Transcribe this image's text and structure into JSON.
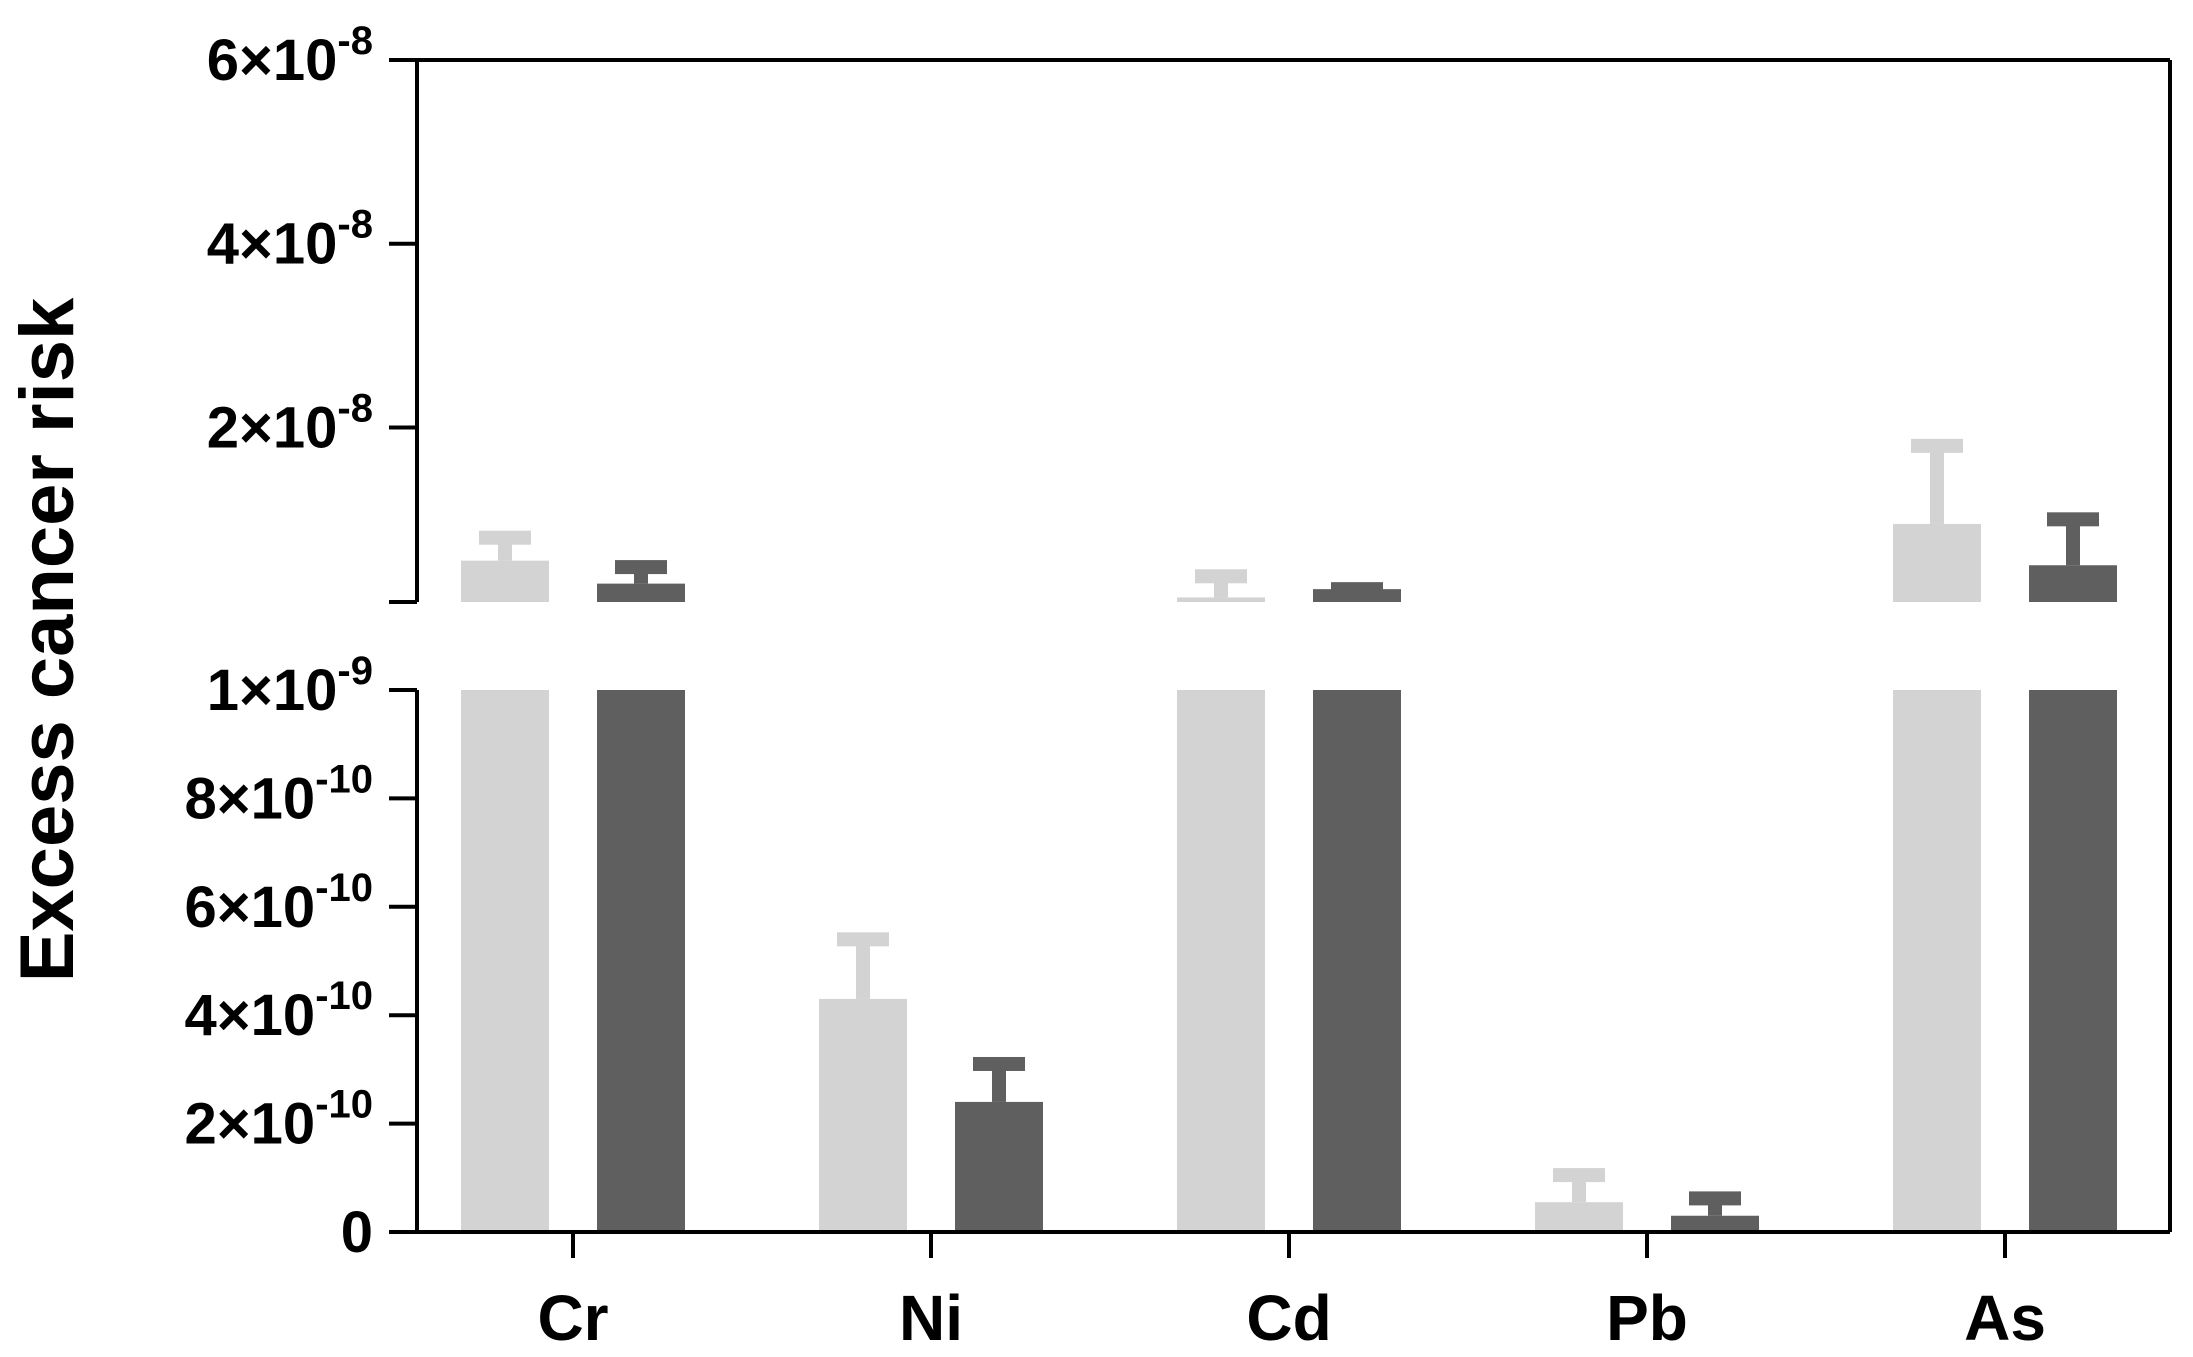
{
  "chart_data": {
    "type": "bar",
    "title": "",
    "xlabel": "",
    "ylabel": "Excess cancer risk",
    "categories": [
      "Cr",
      "Ni",
      "Cd",
      "Pb",
      "As"
    ],
    "y_axis": {
      "broken": true,
      "lower_segment": {
        "ylim": [
          0,
          1e-09
        ],
        "scale": "linear"
      },
      "upper_segment": {
        "ylim": [
          1e-09,
          6e-08
        ],
        "scale": "linear"
      }
    },
    "y_tick_labels": [
      {
        "value": 0,
        "mantissa": "0",
        "exponent": ""
      },
      {
        "value": 2e-10,
        "mantissa": "2×10",
        "exponent": "-10"
      },
      {
        "value": 4e-10,
        "mantissa": "4×10",
        "exponent": "-10"
      },
      {
        "value": 6e-10,
        "mantissa": "6×10",
        "exponent": "-10"
      },
      {
        "value": 8e-10,
        "mantissa": "8×10",
        "exponent": "-10"
      },
      {
        "value": 1e-09,
        "mantissa": "1×10",
        "exponent": "-9"
      },
      {
        "value": 2e-08,
        "mantissa": "2×10",
        "exponent": "-8"
      },
      {
        "value": 4e-08,
        "mantissa": "4×10",
        "exponent": "-8"
      },
      {
        "value": 6e-08,
        "mantissa": "6×10",
        "exponent": "-8"
      }
    ],
    "series": [
      {
        "color": "#d3d3d3",
        "values": [
          5.5e-09,
          4.3e-10,
          1.5e-09,
          5.5e-11,
          9.5e-09
        ],
        "error_upper": [
          8e-09,
          5.4e-10,
          3.8e-09,
          1.05e-10,
          1.8e-08
        ]
      },
      {
        "color": "#5f5f5f",
        "values": [
          3e-09,
          2.4e-10,
          2.4e-09,
          3e-11,
          5e-09
        ],
        "error_upper": [
          4.8e-09,
          3.1e-10,
          2.4e-09,
          6.2e-11,
          1e-08
        ]
      }
    ],
    "grid": false,
    "legend": "none"
  }
}
